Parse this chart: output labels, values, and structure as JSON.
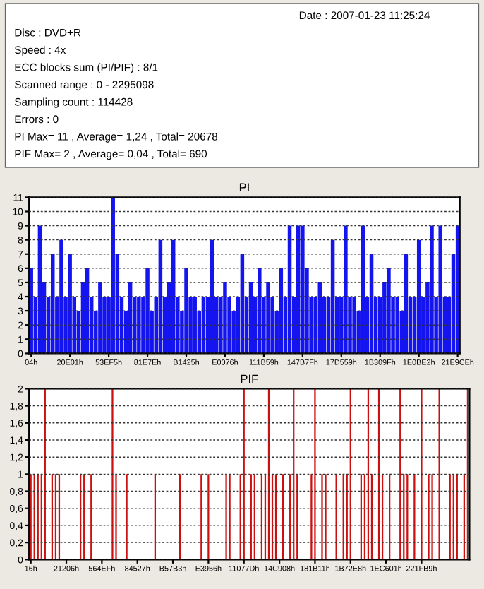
{
  "chart_data": [
    {
      "type": "other",
      "annotations": [
        "Date : 2007-01-23 11:25:24",
        "Disc : DVD+R",
        "Speed : 4x",
        "ECC blocks sum (PI/PIF) : 8/1",
        "Scanned range : 0 - 2295098",
        "Sampling count : 114428",
        "Errors : 0",
        "PI Max= 11 , Average= 1,24 , Total= 20678",
        "PIF Max= 2 , Average= 0,04 , Total= 690"
      ]
    },
    {
      "type": "bar",
      "title": "PI",
      "color": "#1414f0",
      "categories": [
        "04h",
        null,
        null,
        null,
        null,
        null,
        null,
        null,
        null,
        "20E01h",
        null,
        null,
        null,
        null,
        null,
        null,
        null,
        null,
        "53EF5h",
        null,
        null,
        null,
        null,
        null,
        null,
        null,
        null,
        "81E7Eh",
        null,
        null,
        null,
        null,
        null,
        null,
        null,
        null,
        "B1425h",
        null,
        null,
        null,
        null,
        null,
        null,
        null,
        null,
        "E0076h",
        null,
        null,
        null,
        null,
        null,
        null,
        null,
        null,
        "111B59h",
        null,
        null,
        null,
        null,
        null,
        null,
        null,
        null,
        "147B7Fh",
        null,
        null,
        null,
        null,
        null,
        null,
        null,
        null,
        "17D559h",
        null,
        null,
        null,
        null,
        null,
        null,
        null,
        null,
        "1B309Fh",
        null,
        null,
        null,
        null,
        null,
        null,
        null,
        null,
        "1E0BE2h",
        null,
        null,
        null,
        null,
        null,
        null,
        null,
        null,
        "21E9CEh"
      ],
      "values": [
        6,
        4,
        9,
        5,
        4,
        7,
        4,
        8,
        4,
        7,
        4,
        3,
        5,
        6,
        4,
        3,
        5,
        4,
        4,
        11,
        7,
        4,
        3,
        5,
        4,
        4,
        4,
        6,
        3,
        4,
        8,
        4,
        5,
        8,
        4,
        3,
        6,
        4,
        4,
        3,
        4,
        4,
        8,
        4,
        4,
        5,
        4,
        3,
        4,
        7,
        4,
        5,
        4,
        6,
        4,
        5,
        4,
        3,
        6,
        4,
        9,
        4,
        9,
        9,
        6,
        4,
        4,
        5,
        4,
        4,
        8,
        4,
        4,
        9,
        4,
        4,
        3,
        9,
        4,
        7,
        4,
        4,
        5,
        6,
        4,
        4,
        3,
        7,
        4,
        4,
        8,
        4,
        5,
        9,
        4,
        9,
        4,
        4,
        7,
        9
      ],
      "ylim": [
        0,
        11
      ],
      "yticks": [
        0,
        1,
        2,
        3,
        4,
        5,
        6,
        7,
        8,
        9,
        10,
        11
      ],
      "grid": "y"
    },
    {
      "type": "bar",
      "title": "PIF",
      "color": "#cc1010",
      "categories": [
        "16h",
        null,
        null,
        null,
        null,
        null,
        null,
        null,
        null,
        null,
        "21206h",
        null,
        null,
        null,
        null,
        null,
        null,
        null,
        null,
        null,
        "564EFh",
        null,
        null,
        null,
        null,
        null,
        null,
        null,
        null,
        null,
        "84527h",
        null,
        null,
        null,
        null,
        null,
        null,
        null,
        null,
        null,
        "B57B3h",
        null,
        null,
        null,
        null,
        null,
        null,
        null,
        null,
        null,
        "E3956h",
        null,
        null,
        null,
        null,
        null,
        null,
        null,
        null,
        null,
        "11077Dh",
        null,
        null,
        null,
        null,
        null,
        null,
        null,
        null,
        null,
        "14C908h",
        null,
        null,
        null,
        null,
        null,
        null,
        null,
        null,
        null,
        "181B11h",
        null,
        null,
        null,
        null,
        null,
        null,
        null,
        null,
        null,
        "1B72E8h",
        null,
        null,
        null,
        null,
        null,
        null,
        null,
        null,
        null,
        "1EC601h",
        null,
        null,
        null,
        null,
        null,
        null,
        null,
        null,
        null,
        "221FB9h",
        null,
        null,
        null,
        null,
        null,
        null,
        null,
        null,
        null,
        null,
        null,
        null,
        null
      ],
      "values": [
        1,
        1,
        1,
        1,
        2,
        0,
        1,
        1,
        1,
        0,
        0,
        0,
        0,
        0,
        1,
        1,
        0,
        1,
        0,
        0,
        0,
        0,
        0,
        2,
        1,
        0,
        0,
        1,
        0,
        0,
        0,
        0,
        0,
        0,
        0,
        1,
        0,
        0,
        0,
        0,
        0,
        0,
        1,
        0,
        0,
        0,
        0,
        0,
        1,
        0,
        1,
        0,
        0,
        0,
        0,
        1,
        1,
        0,
        0,
        1,
        2,
        0,
        1,
        1,
        0,
        1,
        1,
        2,
        1,
        1,
        0,
        1,
        0,
        1,
        2,
        1,
        0,
        0,
        0,
        1,
        2,
        0,
        1,
        1,
        0,
        0,
        1,
        0,
        1,
        1,
        2,
        0,
        0,
        1,
        1,
        2,
        1,
        0,
        2,
        1,
        0,
        1,
        0,
        0,
        2,
        1,
        1,
        0,
        1,
        0,
        2,
        0,
        1,
        1,
        0,
        2,
        0,
        0,
        1,
        1,
        1,
        0,
        1,
        2
      ],
      "ylim": [
        0,
        2
      ],
      "yticks": [
        0,
        {
          "value": 0.2,
          "label": "0,2"
        },
        {
          "value": 0.4,
          "label": "0,4"
        },
        {
          "value": 0.6,
          "label": "0,6"
        },
        {
          "value": 0.8,
          "label": "0,8"
        },
        1,
        {
          "value": 1.2,
          "label": "1,2"
        },
        {
          "value": 1.4,
          "label": "1,4"
        },
        {
          "value": 1.6,
          "label": "1,6"
        },
        {
          "value": 1.8,
          "label": "1,8"
        },
        2
      ],
      "grid": "y"
    }
  ]
}
